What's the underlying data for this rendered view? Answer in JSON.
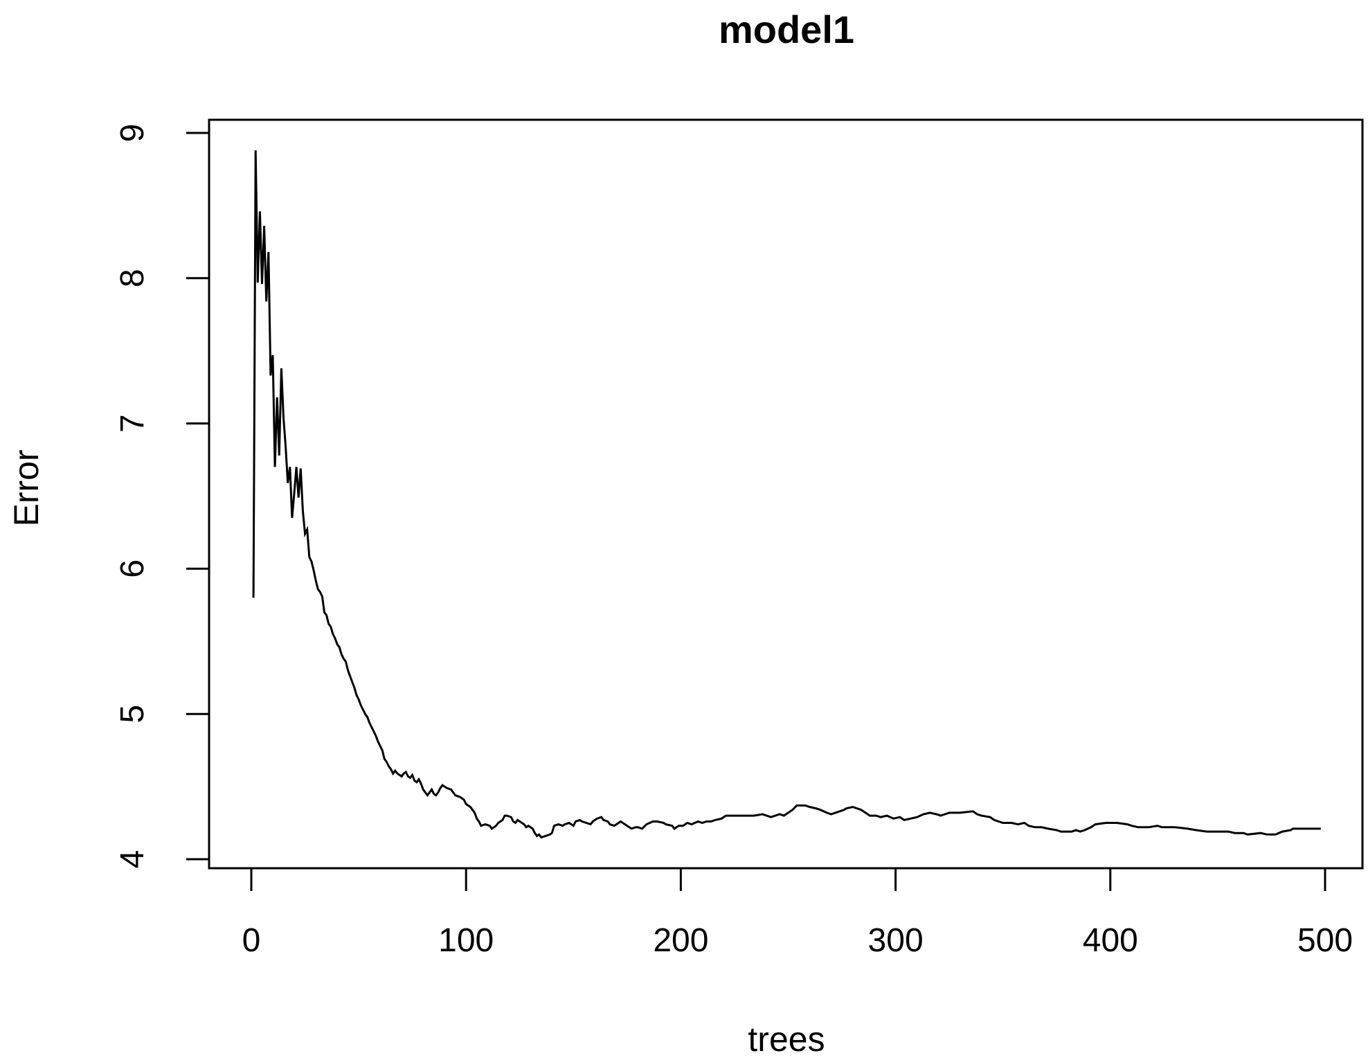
{
  "figure": {
    "kind": "R base graphics line plot",
    "background": "#ffffff",
    "foreground": "#000000"
  },
  "chart_data": {
    "type": "line",
    "title": "model1",
    "xlabel": "trees",
    "ylabel": "Error",
    "x_ticks": [
      0,
      100,
      200,
      300,
      400,
      500
    ],
    "y_ticks": [
      4,
      5,
      6,
      7,
      8,
      9
    ],
    "xlim": [
      -19,
      517
    ],
    "ylim": [
      3.94,
      9.05
    ],
    "grid": false,
    "legend_position": "none",
    "line_color": "#000000",
    "background": "#ffffff",
    "points": [
      [
        1,
        5.8
      ],
      [
        2,
        8.88
      ],
      [
        3,
        7.97
      ],
      [
        4,
        8.46
      ],
      [
        5,
        7.96
      ],
      [
        6,
        8.36
      ],
      [
        7,
        7.84
      ],
      [
        8,
        8.18
      ],
      [
        9,
        7.33
      ],
      [
        10,
        7.47
      ],
      [
        11,
        6.7
      ],
      [
        12,
        7.18
      ],
      [
        13,
        6.78
      ],
      [
        14,
        7.38
      ],
      [
        15,
        7.04
      ],
      [
        16,
        6.84
      ],
      [
        17,
        6.59
      ],
      [
        18,
        6.7
      ],
      [
        19,
        6.35
      ],
      [
        20,
        6.52
      ],
      [
        21,
        6.7
      ],
      [
        22,
        6.49
      ],
      [
        23,
        6.69
      ],
      [
        24,
        6.4
      ],
      [
        25,
        6.24
      ],
      [
        26,
        6.27
      ],
      [
        27,
        6.08
      ],
      [
        28,
        6.05
      ],
      [
        29,
        5.99
      ],
      [
        30,
        5.92
      ],
      [
        31,
        5.86
      ],
      [
        32,
        5.84
      ],
      [
        33,
        5.81
      ],
      [
        34,
        5.7
      ],
      [
        35,
        5.68
      ],
      [
        36,
        5.62
      ],
      [
        37,
        5.6
      ],
      [
        38,
        5.55
      ],
      [
        39,
        5.52
      ],
      [
        40,
        5.48
      ],
      [
        41,
        5.46
      ],
      [
        42,
        5.41
      ],
      [
        43,
        5.38
      ],
      [
        44,
        5.36
      ],
      [
        45,
        5.3
      ],
      [
        46,
        5.26
      ],
      [
        47,
        5.22
      ],
      [
        48,
        5.18
      ],
      [
        49,
        5.13
      ],
      [
        50,
        5.1
      ],
      [
        51,
        5.06
      ],
      [
        52,
        5.03
      ],
      [
        53,
        5.0
      ],
      [
        54,
        4.98
      ],
      [
        55,
        4.94
      ],
      [
        56,
        4.91
      ],
      [
        57,
        4.88
      ],
      [
        58,
        4.85
      ],
      [
        59,
        4.81
      ],
      [
        60,
        4.78
      ],
      [
        61,
        4.75
      ],
      [
        62,
        4.69
      ],
      [
        63,
        4.67
      ],
      [
        64,
        4.64
      ],
      [
        65,
        4.62
      ],
      [
        66,
        4.59
      ],
      [
        67,
        4.61
      ],
      [
        68,
        4.59
      ],
      [
        69,
        4.58
      ],
      [
        70,
        4.57
      ],
      [
        71,
        4.59
      ],
      [
        72,
        4.6
      ],
      [
        73,
        4.57
      ],
      [
        74,
        4.56
      ],
      [
        75,
        4.58
      ],
      [
        76,
        4.54
      ],
      [
        77,
        4.53
      ],
      [
        78,
        4.55
      ],
      [
        79,
        4.52
      ],
      [
        80,
        4.48
      ],
      [
        81,
        4.46
      ],
      [
        82,
        4.44
      ],
      [
        83,
        4.46
      ],
      [
        84,
        4.48
      ],
      [
        85,
        4.45
      ],
      [
        86,
        4.44
      ],
      [
        87,
        4.46
      ],
      [
        88,
        4.49
      ],
      [
        89,
        4.51
      ],
      [
        91,
        4.49
      ],
      [
        93,
        4.48
      ],
      [
        95,
        4.44
      ],
      [
        97,
        4.43
      ],
      [
        99,
        4.41
      ],
      [
        100,
        4.38
      ],
      [
        102,
        4.36
      ],
      [
        104,
        4.32
      ],
      [
        105,
        4.28
      ],
      [
        106,
        4.26
      ],
      [
        107,
        4.23
      ],
      [
        109,
        4.24
      ],
      [
        111,
        4.23
      ],
      [
        112,
        4.21
      ],
      [
        114,
        4.23
      ],
      [
        115,
        4.25
      ],
      [
        117,
        4.27
      ],
      [
        118,
        4.3
      ],
      [
        119,
        4.3
      ],
      [
        121,
        4.29
      ],
      [
        122,
        4.26
      ],
      [
        123,
        4.25
      ],
      [
        124,
        4.27
      ],
      [
        125,
        4.26
      ],
      [
        127,
        4.24
      ],
      [
        128,
        4.22
      ],
      [
        129,
        4.23
      ],
      [
        131,
        4.21
      ],
      [
        132,
        4.18
      ],
      [
        133,
        4.16
      ],
      [
        134,
        4.17
      ],
      [
        135,
        4.15
      ],
      [
        137,
        4.16
      ],
      [
        139,
        4.17
      ],
      [
        140,
        4.18
      ],
      [
        141,
        4.23
      ],
      [
        143,
        4.24
      ],
      [
        145,
        4.23
      ],
      [
        146,
        4.24
      ],
      [
        148,
        4.25
      ],
      [
        150,
        4.23
      ],
      [
        151,
        4.26
      ],
      [
        153,
        4.27
      ],
      [
        154,
        4.26
      ],
      [
        156,
        4.25
      ],
      [
        158,
        4.24
      ],
      [
        159,
        4.26
      ],
      [
        161,
        4.28
      ],
      [
        163,
        4.29
      ],
      [
        164,
        4.27
      ],
      [
        166,
        4.26
      ],
      [
        167,
        4.24
      ],
      [
        169,
        4.23
      ],
      [
        170,
        4.24
      ],
      [
        172,
        4.26
      ],
      [
        174,
        4.24
      ],
      [
        175,
        4.23
      ],
      [
        177,
        4.21
      ],
      [
        179,
        4.22
      ],
      [
        180,
        4.22
      ],
      [
        182,
        4.21
      ],
      [
        184,
        4.24
      ],
      [
        187,
        4.26
      ],
      [
        189,
        4.26
      ],
      [
        192,
        4.25
      ],
      [
        193,
        4.24
      ],
      [
        196,
        4.23
      ],
      [
        197,
        4.21
      ],
      [
        199,
        4.23
      ],
      [
        201,
        4.23
      ],
      [
        203,
        4.25
      ],
      [
        205,
        4.24
      ],
      [
        208,
        4.26
      ],
      [
        210,
        4.25
      ],
      [
        212,
        4.26
      ],
      [
        214,
        4.26
      ],
      [
        216,
        4.27
      ],
      [
        219,
        4.28
      ],
      [
        221,
        4.3
      ],
      [
        224,
        4.3
      ],
      [
        228,
        4.3
      ],
      [
        232,
        4.3
      ],
      [
        234,
        4.3
      ],
      [
        238,
        4.31
      ],
      [
        240,
        4.3
      ],
      [
        242,
        4.29
      ],
      [
        244,
        4.3
      ],
      [
        246,
        4.31
      ],
      [
        248,
        4.3
      ],
      [
        250,
        4.32
      ],
      [
        252,
        4.34
      ],
      [
        254,
        4.37
      ],
      [
        256,
        4.37
      ],
      [
        258,
        4.37
      ],
      [
        260,
        4.36
      ],
      [
        263,
        4.35
      ],
      [
        265,
        4.34
      ],
      [
        268,
        4.32
      ],
      [
        270,
        4.31
      ],
      [
        272,
        4.32
      ],
      [
        274,
        4.33
      ],
      [
        276,
        4.34
      ],
      [
        277,
        4.35
      ],
      [
        280,
        4.36
      ],
      [
        282,
        4.35
      ],
      [
        284,
        4.34
      ],
      [
        286,
        4.32
      ],
      [
        288,
        4.3
      ],
      [
        291,
        4.3
      ],
      [
        293,
        4.29
      ],
      [
        296,
        4.3
      ],
      [
        299,
        4.28
      ],
      [
        302,
        4.29
      ],
      [
        304,
        4.27
      ],
      [
        307,
        4.28
      ],
      [
        310,
        4.29
      ],
      [
        313,
        4.31
      ],
      [
        316,
        4.32
      ],
      [
        319,
        4.31
      ],
      [
        321,
        4.3
      ],
      [
        323,
        4.31
      ],
      [
        325,
        4.32
      ],
      [
        330,
        4.32
      ],
      [
        336,
        4.33
      ],
      [
        338,
        4.31
      ],
      [
        340,
        4.3
      ],
      [
        344,
        4.29
      ],
      [
        346,
        4.27
      ],
      [
        348,
        4.26
      ],
      [
        350,
        4.25
      ],
      [
        354,
        4.25
      ],
      [
        357,
        4.24
      ],
      [
        360,
        4.25
      ],
      [
        362,
        4.23
      ],
      [
        365,
        4.22
      ],
      [
        368,
        4.22
      ],
      [
        371,
        4.21
      ],
      [
        375,
        4.2
      ],
      [
        377,
        4.19
      ],
      [
        379,
        4.19
      ],
      [
        382,
        4.19
      ],
      [
        384,
        4.2
      ],
      [
        386,
        4.19
      ],
      [
        388,
        4.2
      ],
      [
        391,
        4.22
      ],
      [
        393,
        4.24
      ],
      [
        398,
        4.25
      ],
      [
        403,
        4.25
      ],
      [
        408,
        4.24
      ],
      [
        410,
        4.23
      ],
      [
        413,
        4.22
      ],
      [
        418,
        4.22
      ],
      [
        422,
        4.23
      ],
      [
        424,
        4.22
      ],
      [
        430,
        4.22
      ],
      [
        436,
        4.21
      ],
      [
        440,
        4.2
      ],
      [
        445,
        4.19
      ],
      [
        448,
        4.19
      ],
      [
        452,
        4.19
      ],
      [
        455,
        4.19
      ],
      [
        458,
        4.18
      ],
      [
        462,
        4.18
      ],
      [
        464,
        4.17
      ],
      [
        470,
        4.18
      ],
      [
        473,
        4.17
      ],
      [
        477,
        4.17
      ],
      [
        480,
        4.19
      ],
      [
        484,
        4.2
      ],
      [
        485,
        4.21
      ],
      [
        490,
        4.21
      ],
      [
        494,
        4.21
      ],
      [
        498,
        4.21
      ]
    ]
  }
}
